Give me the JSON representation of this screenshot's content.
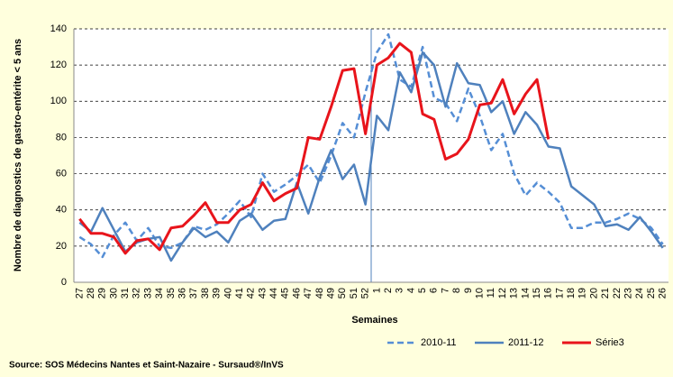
{
  "chart_data": {
    "type": "line",
    "y_label": "Nombre de diagnostics de gastro-entérite < 5 ans",
    "x_label": "Semaines",
    "source": "Source: SOS Médecins Nantes et Saint-Nazaire - Sursaud®/InVS",
    "categories": [
      "27",
      "28",
      "29",
      "30",
      "31",
      "32",
      "33",
      "34",
      "35",
      "36",
      "37",
      "38",
      "39",
      "40",
      "41",
      "42",
      "43",
      "44",
      "45",
      "46",
      "47",
      "48",
      "49",
      "50",
      "51",
      "52",
      "1",
      "2",
      "3",
      "4",
      "5",
      "6",
      "7",
      "8",
      "9",
      "10",
      "11",
      "12",
      "13",
      "14",
      "15",
      "16",
      "17",
      "18",
      "19",
      "20",
      "21",
      "22",
      "23",
      "24",
      "25",
      "26"
    ],
    "series": [
      {
        "name": "2010-11",
        "color": "#558ed5",
        "dashed": true,
        "values": [
          25,
          21,
          14,
          26,
          33,
          23,
          30,
          20,
          19,
          22,
          31,
          29,
          32,
          38,
          45,
          36,
          60,
          50,
          54,
          59,
          65,
          55,
          70,
          88,
          80,
          105,
          127,
          137,
          112,
          108,
          130,
          102,
          99,
          89,
          107,
          92,
          73,
          82,
          60,
          48,
          55,
          50,
          44,
          30,
          30,
          33,
          33,
          35,
          38,
          35,
          30,
          21
        ]
      },
      {
        "name": "2011-12",
        "color": "#4f81bd",
        "dashed": false,
        "values": [
          33,
          28,
          41,
          29,
          17,
          22,
          24,
          25,
          12,
          22,
          30,
          25,
          28,
          22,
          34,
          38,
          29,
          34,
          35,
          55,
          38,
          58,
          73,
          57,
          65,
          43,
          92,
          84,
          116,
          105,
          127,
          120,
          97,
          121,
          110,
          109,
          94,
          100,
          82,
          94,
          87,
          75,
          74,
          53,
          48,
          43,
          31,
          32,
          29,
          36,
          28,
          19
        ]
      },
      {
        "name": "Série3",
        "color": "#e8141b",
        "dashed": false,
        "values": [
          35,
          27,
          27,
          25,
          16,
          23,
          24,
          18,
          30,
          31,
          37,
          44,
          33,
          33,
          40,
          43,
          55,
          45,
          49,
          52,
          80,
          79,
          97,
          117,
          118,
          82,
          120,
          124,
          132,
          127,
          93,
          90,
          68,
          71,
          79,
          98,
          99,
          112,
          93,
          104,
          112,
          79,
          null,
          null,
          null,
          null,
          null,
          null,
          null,
          null,
          null,
          null
        ]
      }
    ],
    "ylim": [
      0,
      140
    ],
    "yticks": [
      0,
      20,
      40,
      60,
      80,
      100,
      120,
      140
    ],
    "grid": true
  }
}
